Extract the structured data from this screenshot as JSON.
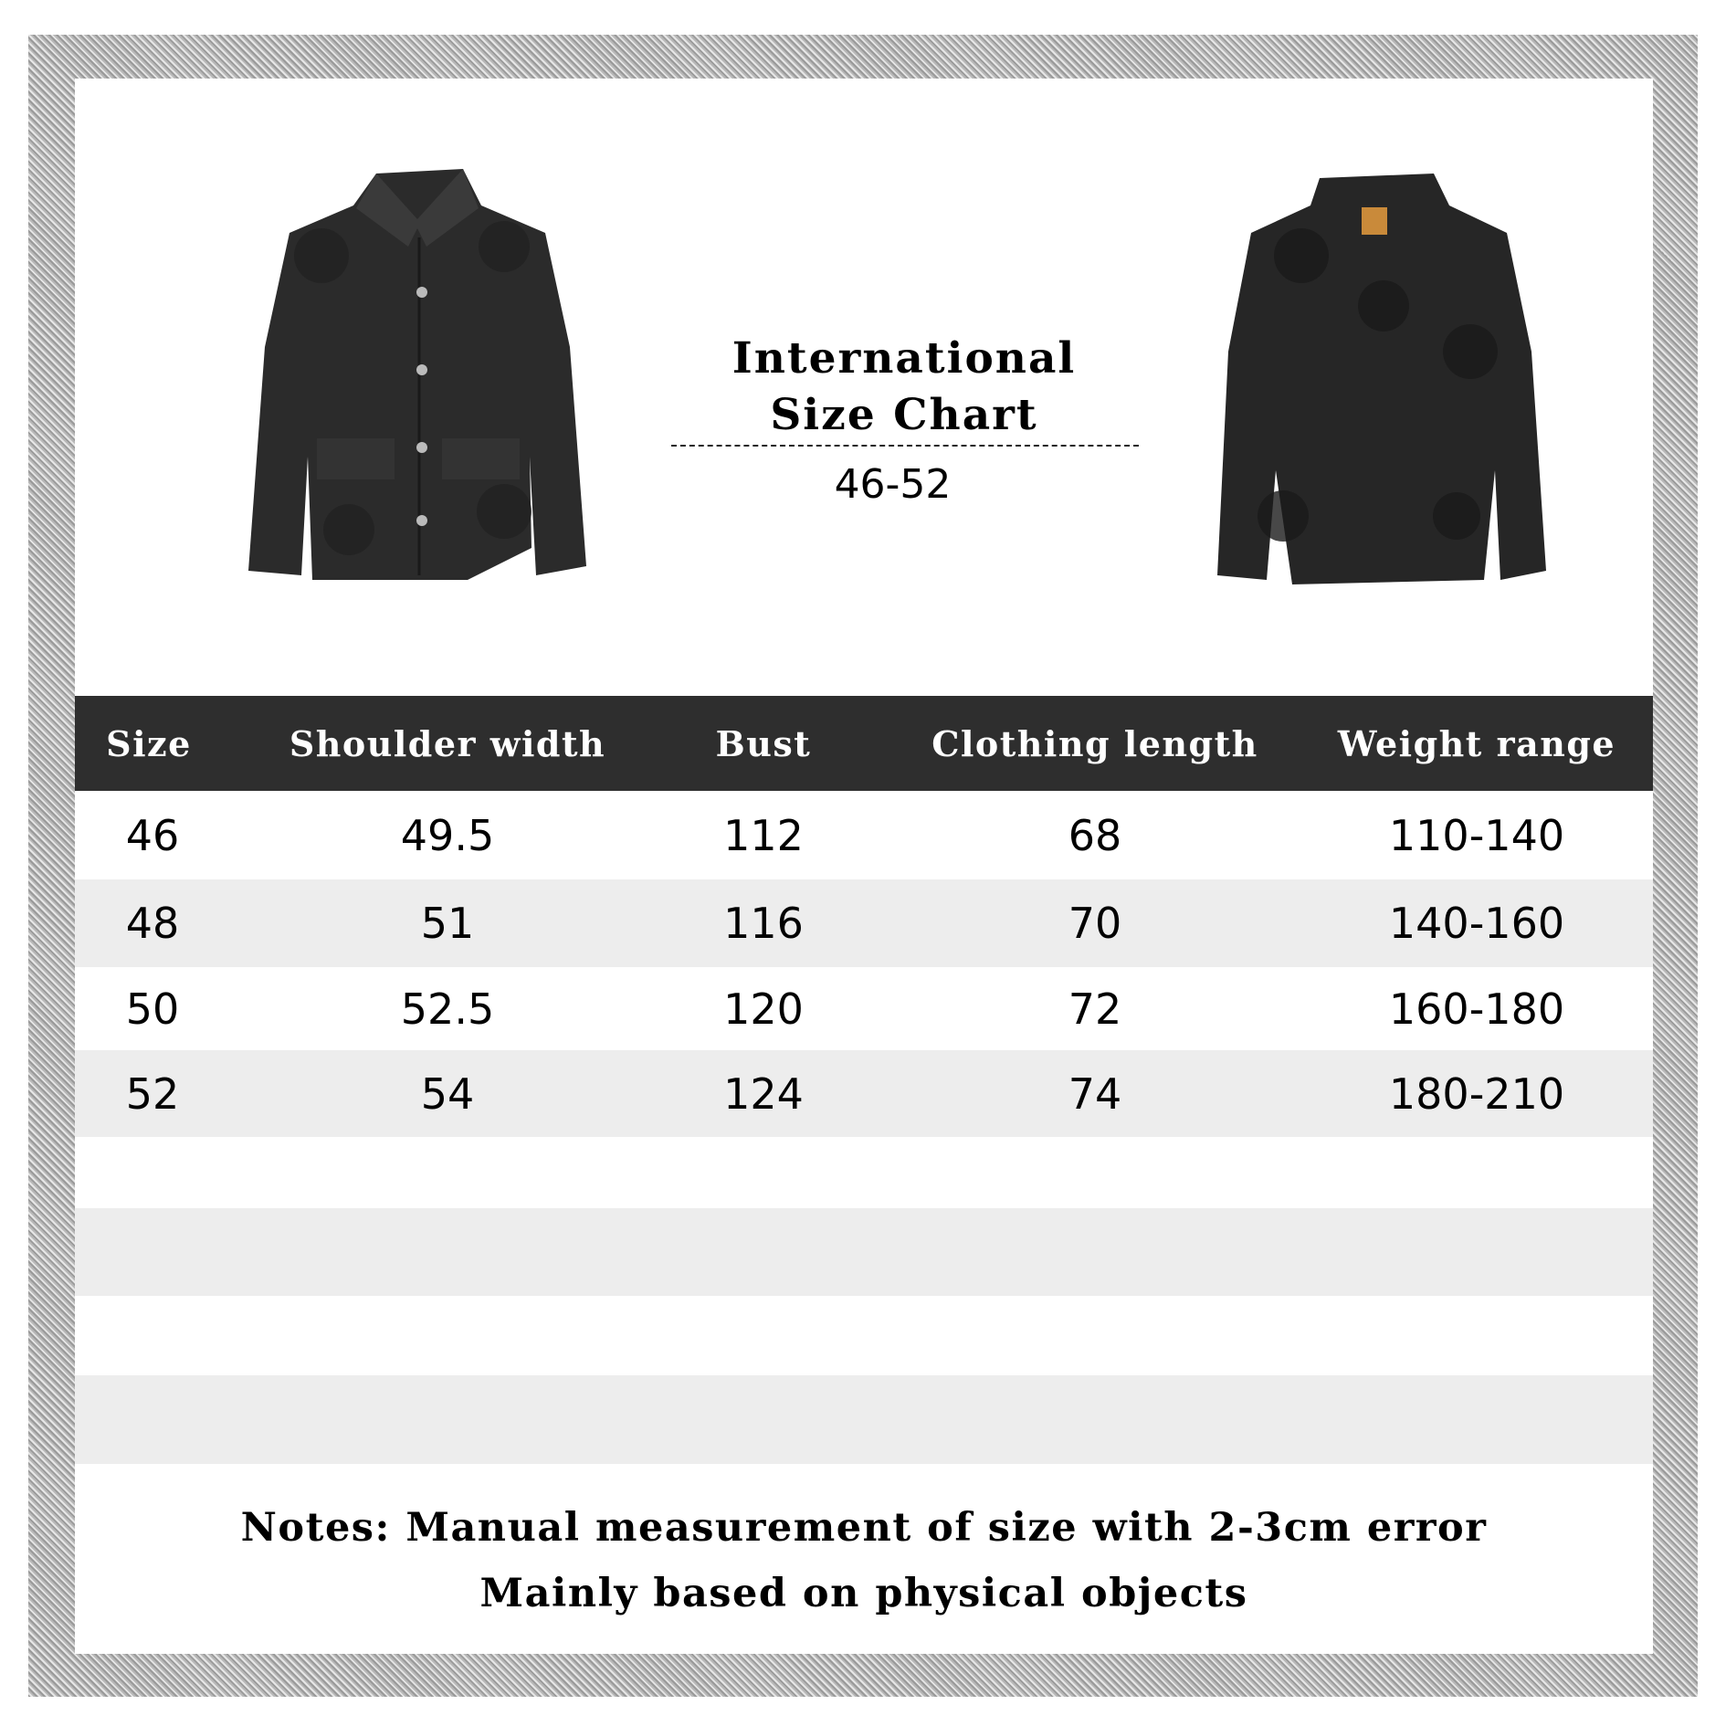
{
  "title": {
    "line1": "International",
    "line2": "Size Chart",
    "range": "46-52"
  },
  "images": {
    "front": "jacket-front-image",
    "back": "jacket-back-image"
  },
  "table": {
    "headers": [
      "Size",
      "Shoulder width",
      "Bust",
      "Clothing length",
      "Weight range"
    ],
    "rows": [
      [
        "46",
        "49.5",
        "112",
        "68",
        "110-140"
      ],
      [
        "48",
        "51",
        "116",
        "70",
        "140-160"
      ],
      [
        "50",
        "52.5",
        "120",
        "72",
        "160-180"
      ],
      [
        "52",
        "54",
        "124",
        "74",
        "180-210"
      ]
    ]
  },
  "notes": {
    "line1": "Notes:  Manual measurement of size with 2-3cm error",
    "line2": "Mainly based on physical objects"
  },
  "colors": {
    "header_bg": "#2e2e2e",
    "stripe": "#ededed",
    "frame": "#b0b0b0"
  }
}
